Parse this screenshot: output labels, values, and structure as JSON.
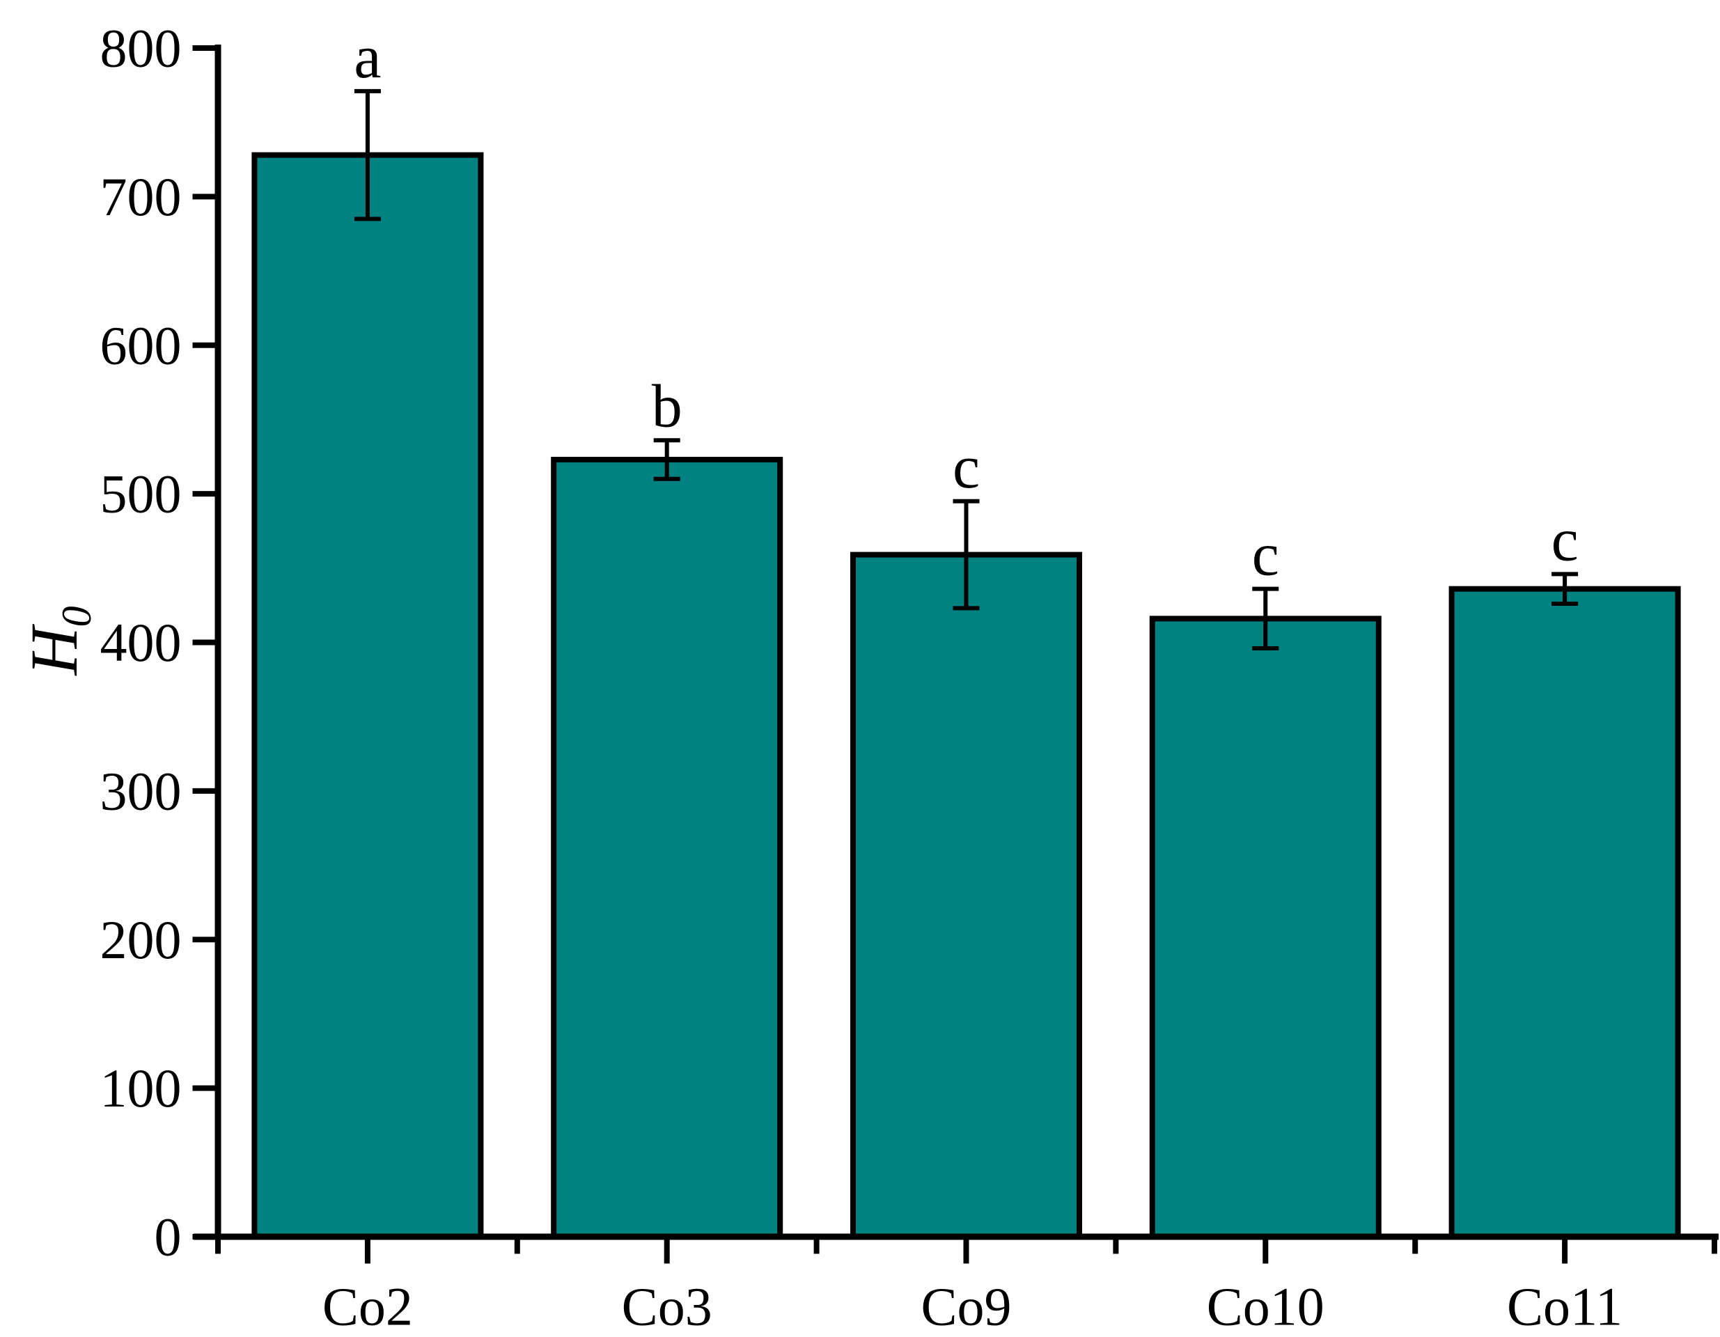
{
  "figure": {
    "background_color": "#ffffff",
    "text_color": "#000000",
    "axis_color": "#000000",
    "ylabel": {
      "main": "H",
      "sub": "0"
    }
  },
  "chart_data": {
    "type": "bar",
    "title": "",
    "xlabel": "",
    "ylabel": "H_0 (italic H with subscript 0, rotated on y-axis)",
    "categories": [
      "Co2",
      "Co3",
      "Co9",
      "Co10",
      "Co11"
    ],
    "values": [
      728,
      523,
      459,
      416,
      436
    ],
    "error_bars_plus": [
      43,
      13,
      36,
      20,
      10
    ],
    "error_bars_minus": [
      43,
      13,
      36,
      20,
      10
    ],
    "significance_letters": [
      "a",
      "b",
      "c",
      "c",
      "c"
    ],
    "ylim": [
      0,
      800
    ],
    "ytick_step": 100,
    "yticks": [
      0,
      100,
      200,
      300,
      400,
      500,
      600,
      700,
      800
    ],
    "grid": false,
    "legend": null,
    "bar_fill_color": "#008281",
    "bar_edge_color": "#000000",
    "error_bar_color": "#000000"
  }
}
